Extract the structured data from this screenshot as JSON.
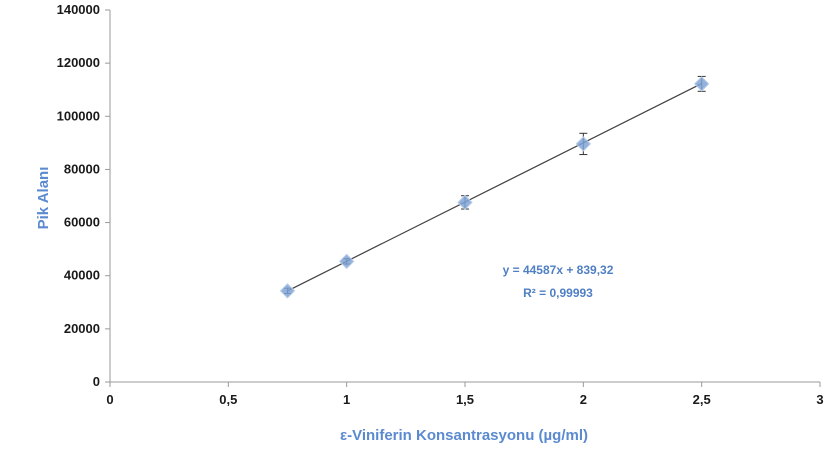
{
  "chart_data": {
    "type": "scatter",
    "xlabel": "ε-Viniferin Konsantrasyonu (µg/ml)",
    "ylabel": "Pik Alanı",
    "xlim": [
      0,
      3
    ],
    "ylim": [
      0,
      140000
    ],
    "x_ticks": [
      "0",
      "0,5",
      "1",
      "1,5",
      "2",
      "2,5",
      "3"
    ],
    "x_tick_values": [
      0,
      0.5,
      1,
      1.5,
      2,
      2.5,
      3
    ],
    "y_ticks": [
      "0",
      "20000",
      "40000",
      "60000",
      "80000",
      "100000",
      "120000",
      "140000"
    ],
    "y_tick_values": [
      0,
      20000,
      40000,
      60000,
      80000,
      100000,
      120000,
      140000
    ],
    "grid": false,
    "series": [
      {
        "x": [
          0.75,
          1,
          1.5,
          2,
          2.5
        ],
        "y": [
          34300,
          45400,
          67600,
          89600,
          112200
        ],
        "error": [
          1000,
          1000,
          2500,
          4000,
          2800
        ],
        "color": "#7fa3d6"
      }
    ],
    "trendline": {
      "x": [
        0.75,
        2.5
      ],
      "slope": 44587,
      "intercept": 839.32,
      "color": "#404040"
    },
    "annotations": {
      "equation": "y = 44587x + 839,32",
      "r2": "R² = 0,99993"
    }
  }
}
